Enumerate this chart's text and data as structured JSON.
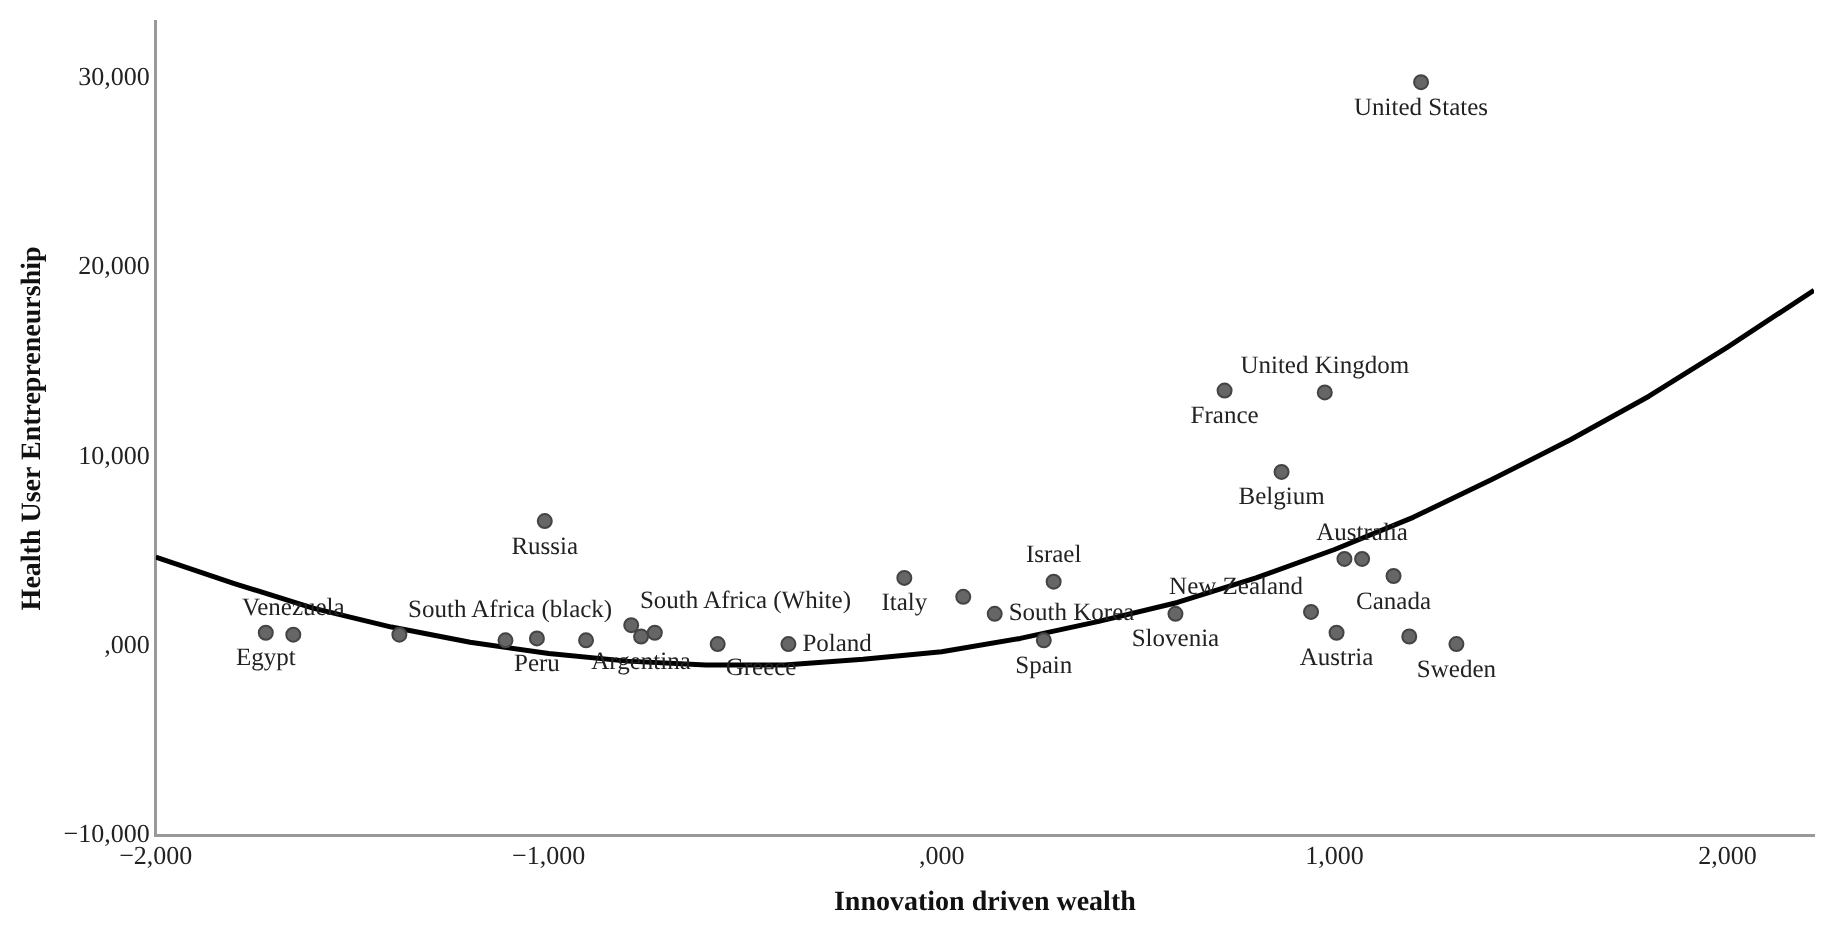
{
  "chart_data": {
    "type": "scatter",
    "xlabel": "Innovation driven wealth",
    "ylabel": "Health User Entrepreneurship",
    "xlim": [
      -2000,
      2220
    ],
    "ylim": [
      -10000,
      33000
    ],
    "xticks": [
      {
        "value": -2000,
        "label": "−2,000"
      },
      {
        "value": -1000,
        "label": "−1,000"
      },
      {
        "value": 0,
        "label": ",000"
      },
      {
        "value": 1000,
        "label": "1,000"
      },
      {
        "value": 2000,
        "label": "2,000"
      }
    ],
    "yticks": [
      {
        "value": -10000,
        "label": "−10,000"
      },
      {
        "value": 0,
        "label": ",000"
      },
      {
        "value": 10000,
        "label": "10,000"
      },
      {
        "value": 20000,
        "label": "20,000"
      },
      {
        "value": 30000,
        "label": "30,000"
      }
    ],
    "grid": false,
    "legend": false,
    "series": [
      {
        "type": "scatter",
        "color": "#666666",
        "marker": "circle",
        "x": [
          -1720,
          -1650,
          -1380,
          -1110,
          -1030,
          -905,
          -790,
          -765,
          -730,
          -1010,
          -570,
          -390,
          -95,
          55,
          135,
          285,
          260,
          595,
          1220,
          720,
          975,
          865,
          1025,
          1070,
          1150,
          940,
          1005,
          1190,
          1310
        ],
        "values": [
          700,
          600,
          600,
          300,
          400,
          300,
          1100,
          500,
          700,
          6600,
          100,
          100,
          3600,
          2600,
          1700,
          3400,
          300,
          1700,
          29800,
          13500,
          13400,
          9200,
          4600,
          4600,
          3700,
          1800,
          700,
          500,
          100
        ]
      },
      {
        "type": "line",
        "color": "#000000",
        "marker": "none",
        "line_style": "solid",
        "x": [
          -2000,
          -1800,
          -1600,
          -1400,
          -1200,
          -1000,
          -800,
          -600,
          -400,
          -200,
          0,
          200,
          400,
          600,
          800,
          1000,
          1200,
          1400,
          1600,
          1800,
          2000,
          2220
        ],
        "values": [
          4700,
          3300,
          2000,
          1000,
          200,
          -400,
          -800,
          -1000,
          -1000,
          -700,
          -300,
          400,
          1300,
          2300,
          3600,
          5100,
          6800,
          8800,
          10900,
          13200,
          15800,
          18800
        ]
      }
    ],
    "annotations": [
      {
        "text": "Egypt",
        "x": -1720,
        "y": 700
      },
      {
        "text": "Venezuela",
        "x": -1650,
        "y": 600
      },
      {
        "text": "South Africa (black)",
        "x": -1380,
        "y": 600
      },
      {
        "text": "Peru",
        "x": -1030,
        "y": 400
      },
      {
        "text": "Argentina",
        "x": -765,
        "y": 500
      },
      {
        "text": "South Africa (White)",
        "x": -790,
        "y": 1100
      },
      {
        "text": "Russia",
        "x": -1010,
        "y": 6600
      },
      {
        "text": "Greece",
        "x": -570,
        "y": 100
      },
      {
        "text": "Poland",
        "x": -390,
        "y": 100
      },
      {
        "text": "Italy",
        "x": -95,
        "y": 3600
      },
      {
        "text": "South Korea",
        "x": 135,
        "y": 1700
      },
      {
        "text": "Israel",
        "x": 285,
        "y": 3400
      },
      {
        "text": "Spain",
        "x": 260,
        "y": 300
      },
      {
        "text": "Slovenia",
        "x": 595,
        "y": 1700
      },
      {
        "text": "United States",
        "x": 1220,
        "y": 29800
      },
      {
        "text": "France",
        "x": 720,
        "y": 13500
      },
      {
        "text": "United Kingdom",
        "x": 975,
        "y": 13400
      },
      {
        "text": "Belgium",
        "x": 865,
        "y": 9200
      },
      {
        "text": "Australia",
        "x": 1070,
        "y": 4600
      },
      {
        "text": "Canada",
        "x": 1150,
        "y": 3700
      },
      {
        "text": "New Zealand",
        "x": 940,
        "y": 1800
      },
      {
        "text": "Austria",
        "x": 1005,
        "y": 700
      },
      {
        "text": "Sweden",
        "x": 1310,
        "y": 100
      }
    ]
  }
}
